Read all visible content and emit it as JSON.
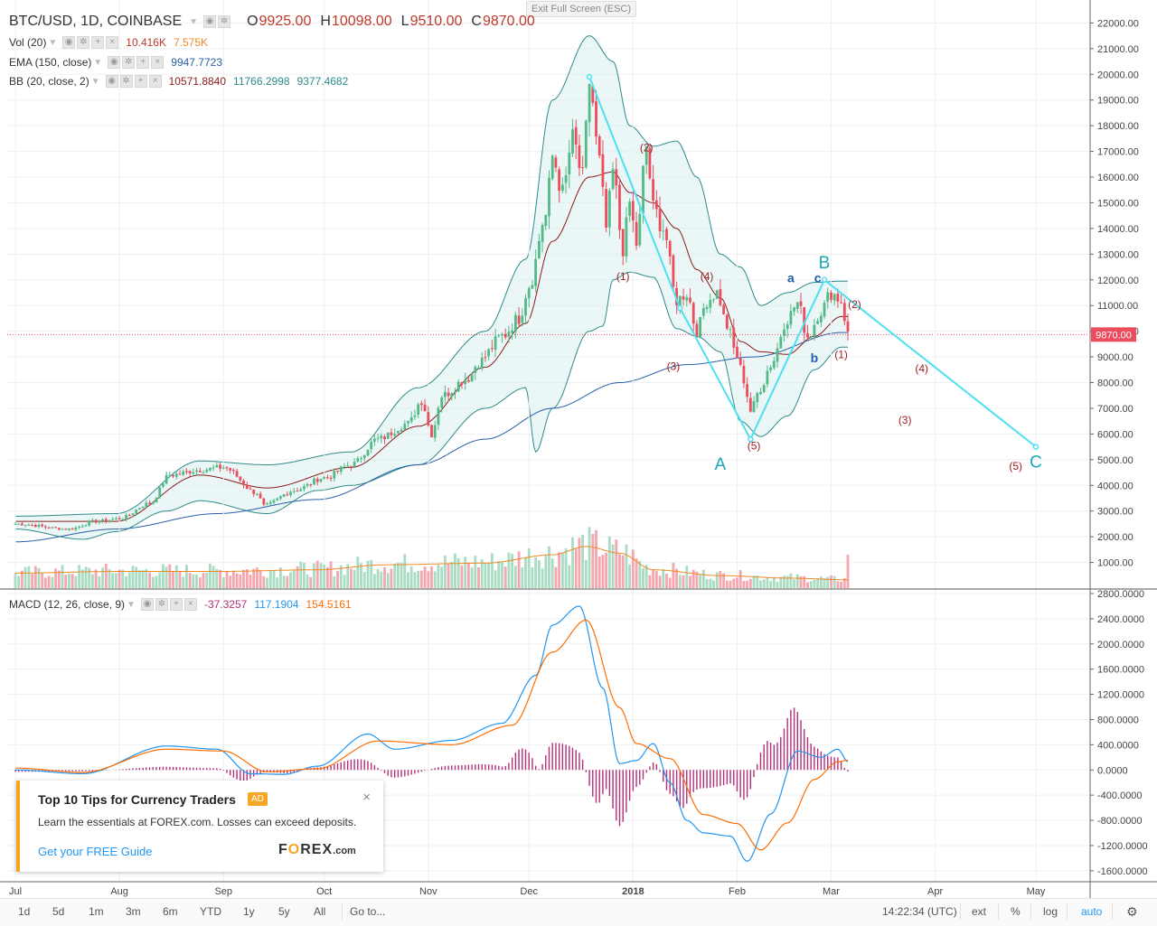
{
  "header": {
    "symbol": "BTC/USD, 1D, COINBASE",
    "open_label": "O",
    "open": "9925.00",
    "high_label": "H",
    "high": "10098.00",
    "low_label": "L",
    "low": "9510.00",
    "close_label": "C",
    "close": "9870.00"
  },
  "exit_fullscreen": "Exit Full Screen (ESC)",
  "indicators": {
    "vol": {
      "label": "Vol (20)",
      "v1": "10.416K",
      "v2": "7.575K"
    },
    "ema": {
      "label": "EMA (150, close)",
      "v1": "9947.7723"
    },
    "bb": {
      "label": "BB (20, close, 2)",
      "v1": "10571.8840",
      "v2": "11766.2998",
      "v3": "9377.4682"
    },
    "macd": {
      "label": "MACD (12, 26, close, 9)",
      "v1": "-37.3257",
      "v2": "117.1904",
      "v3": "154.5161"
    }
  },
  "colors": {
    "up": "#53b987",
    "down": "#eb4d5c",
    "vol_up": "#a9dcc3",
    "vol_down": "#f5a6ae",
    "bb_band": "#2e8b8b",
    "bb_basis": "#8b1a1a",
    "ema": "#2a5fa8",
    "wave": "#4ee0f0",
    "macd": "#2196f3",
    "signal": "#ff6d00",
    "hist": "#b0307a",
    "price_tag": "#eb4d5c"
  },
  "chart_data": [
    {
      "type": "candlestick",
      "title": "BTC/USD, 1D, COINBASE",
      "ylim": [
        0,
        22400
      ],
      "y_ticks": [
        "1000.00",
        "2000.00",
        "3000.00",
        "4000.00",
        "5000.00",
        "6000.00",
        "7000.00",
        "8000.00",
        "9000.00",
        "10000.00",
        "11000.00",
        "12000.00",
        "13000.00",
        "14000.00",
        "15000.00",
        "16000.00",
        "17000.00",
        "18000.00",
        "19000.00",
        "20000.00",
        "21000.00",
        "22000.00"
      ],
      "x_ticks": [
        "Jul",
        "Aug",
        "Sep",
        "Oct",
        "Nov",
        "Dec",
        "2018",
        "Feb",
        "Mar",
        "Apr",
        "May"
      ],
      "x_tick_days": [
        0,
        31,
        62,
        92,
        123,
        153,
        184,
        215,
        243,
        274,
        304
      ],
      "last_price_label": "9870.00",
      "anchors": [
        [
          0,
          2500
        ],
        [
          16,
          2300
        ],
        [
          24,
          2600
        ],
        [
          31,
          2700
        ],
        [
          40,
          3300
        ],
        [
          46,
          4400
        ],
        [
          55,
          4600
        ],
        [
          62,
          4700
        ],
        [
          72,
          3700
        ],
        [
          74,
          3200
        ],
        [
          83,
          3800
        ],
        [
          92,
          4300
        ],
        [
          100,
          4800
        ],
        [
          108,
          5800
        ],
        [
          117,
          6400
        ],
        [
          121,
          7300
        ],
        [
          124,
          6000
        ],
        [
          127,
          7500
        ],
        [
          135,
          8200
        ],
        [
          138,
          8800
        ],
        [
          145,
          9800
        ],
        [
          150,
          10500
        ],
        [
          153,
          11800
        ],
        [
          158,
          14500
        ],
        [
          160,
          16800
        ],
        [
          163,
          15400
        ],
        [
          166,
          17500
        ],
        [
          169,
          16000
        ],
        [
          171,
          19700
        ],
        [
          174,
          16600
        ],
        [
          176,
          14000
        ],
        [
          178,
          16200
        ],
        [
          181,
          13200
        ],
        [
          183,
          15000
        ],
        [
          185,
          13400
        ],
        [
          188,
          17200
        ],
        [
          190,
          14800
        ],
        [
          193,
          14000
        ],
        [
          197,
          11200
        ],
        [
          200,
          11500
        ],
        [
          203,
          10000
        ],
        [
          206,
          11200
        ],
        [
          209,
          11500
        ],
        [
          212,
          10200
        ],
        [
          215,
          9000
        ],
        [
          217,
          8100
        ],
        [
          219,
          6900
        ],
        [
          222,
          7800
        ],
        [
          225,
          8700
        ],
        [
          230,
          10500
        ],
        [
          233,
          11100
        ],
        [
          236,
          9800
        ],
        [
          240,
          10800
        ],
        [
          243,
          11500
        ],
        [
          246,
          11200
        ],
        [
          248,
          9870
        ]
      ],
      "bb_upper_anchors": [
        [
          0,
          2800
        ],
        [
          30,
          2900
        ],
        [
          55,
          4950
        ],
        [
          75,
          4800
        ],
        [
          100,
          5300
        ],
        [
          120,
          7800
        ],
        [
          140,
          10000
        ],
        [
          152,
          12800
        ],
        [
          160,
          19000
        ],
        [
          171,
          21500
        ],
        [
          178,
          20500
        ],
        [
          183,
          18000
        ],
        [
          190,
          17200
        ],
        [
          197,
          17400
        ],
        [
          203,
          16000
        ],
        [
          210,
          13000
        ],
        [
          216,
          12500
        ],
        [
          222,
          11000
        ],
        [
          230,
          11500
        ],
        [
          238,
          11900
        ],
        [
          246,
          11950
        ]
      ],
      "bb_basis_anchors": [
        [
          0,
          2600
        ],
        [
          30,
          2600
        ],
        [
          55,
          4400
        ],
        [
          75,
          3900
        ],
        [
          100,
          4700
        ],
        [
          120,
          6300
        ],
        [
          140,
          8600
        ],
        [
          152,
          10300
        ],
        [
          160,
          13500
        ],
        [
          171,
          16000
        ],
        [
          178,
          16200
        ],
        [
          183,
          15400
        ],
        [
          190,
          15000
        ],
        [
          197,
          14000
        ],
        [
          203,
          12400
        ],
        [
          210,
          11300
        ],
        [
          216,
          9600
        ],
        [
          222,
          9200
        ],
        [
          230,
          9100
        ],
        [
          238,
          9800
        ],
        [
          246,
          10572
        ]
      ],
      "bb_lower_anchors": [
        [
          0,
          2300
        ],
        [
          20,
          1900
        ],
        [
          30,
          2200
        ],
        [
          45,
          3000
        ],
        [
          55,
          3400
        ],
        [
          75,
          2900
        ],
        [
          90,
          3800
        ],
        [
          100,
          4000
        ],
        [
          120,
          4800
        ],
        [
          140,
          7000
        ],
        [
          152,
          7800
        ],
        [
          155,
          5300
        ],
        [
          160,
          7000
        ],
        [
          171,
          10000
        ],
        [
          175,
          10200
        ],
        [
          178,
          12000
        ],
        [
          183,
          12300
        ],
        [
          190,
          12100
        ],
        [
          197,
          10100
        ],
        [
          203,
          9800
        ],
        [
          210,
          9200
        ],
        [
          216,
          6500
        ],
        [
          222,
          5900
        ],
        [
          230,
          6700
        ],
        [
          238,
          8500
        ],
        [
          246,
          9377
        ]
      ],
      "ema_anchors": [
        [
          0,
          1800
        ],
        [
          30,
          2300
        ],
        [
          60,
          2900
        ],
        [
          90,
          3450
        ],
        [
          120,
          4800
        ],
        [
          140,
          5800
        ],
        [
          160,
          7000
        ],
        [
          180,
          8000
        ],
        [
          200,
          8700
        ],
        [
          220,
          9000
        ],
        [
          246,
          9948
        ]
      ],
      "volume_ylim": [
        0,
        130
      ],
      "vol_ma_anchors": [
        [
          0,
          18
        ],
        [
          30,
          20
        ],
        [
          60,
          20
        ],
        [
          90,
          22
        ],
        [
          110,
          28
        ],
        [
          140,
          30
        ],
        [
          160,
          40
        ],
        [
          170,
          50
        ],
        [
          180,
          42
        ],
        [
          190,
          22
        ],
        [
          210,
          15
        ],
        [
          230,
          12
        ],
        [
          248,
          10
        ]
      ],
      "wave_points": [
        [
          171,
          19900
        ],
        [
          198,
          10900
        ],
        [
          219,
          5800
        ],
        [
          241,
          12000
        ],
        [
          304,
          5500
        ]
      ],
      "wave_labels": [
        {
          "day": 210,
          "price": 4600,
          "text": "A",
          "big": true
        },
        {
          "day": 241,
          "price": 12450,
          "text": "B",
          "big": true
        },
        {
          "day": 304,
          "price": 4700,
          "text": "C",
          "big": true
        },
        {
          "day": 231,
          "price": 11900,
          "text": "a",
          "blue": true
        },
        {
          "day": 238,
          "price": 8800,
          "text": "b",
          "blue": true
        },
        {
          "day": 239,
          "price": 11900,
          "text": "c",
          "blue": true
        },
        {
          "day": 181,
          "price": 12000,
          "text": "(1)"
        },
        {
          "day": 188,
          "price": 17000,
          "text": "(2)"
        },
        {
          "day": 196,
          "price": 8500,
          "text": "(3)"
        },
        {
          "day": 206,
          "price": 12000,
          "text": "(4)"
        },
        {
          "day": 220,
          "price": 5400,
          "text": "(5)"
        },
        {
          "day": 250,
          "price": 10900,
          "text": "(2)"
        },
        {
          "day": 246,
          "price": 8950,
          "text": "(1)"
        },
        {
          "day": 270,
          "price": 8400,
          "text": "(4)"
        },
        {
          "day": 265,
          "price": 6400,
          "text": "(3)"
        },
        {
          "day": 298,
          "price": 4600,
          "text": "(5)"
        }
      ]
    },
    {
      "type": "line",
      "title": "MACD (12, 26, close, 9)",
      "ylim": [
        -1760,
        2800
      ],
      "y_ticks": [
        "2800.0000",
        "2400.0000",
        "2000.0000",
        "1600.0000",
        "1200.0000",
        "800.0000",
        "400.0000",
        "0.0000",
        "-400.0000",
        "-800.0000",
        "-1200.0000",
        "-1600.0000"
      ],
      "macd_anchors": [
        [
          0,
          0
        ],
        [
          20,
          -60
        ],
        [
          45,
          380
        ],
        [
          60,
          330
        ],
        [
          70,
          -60
        ],
        [
          80,
          -70
        ],
        [
          90,
          60
        ],
        [
          105,
          570
        ],
        [
          113,
          330
        ],
        [
          130,
          470
        ],
        [
          145,
          740
        ],
        [
          155,
          1500
        ],
        [
          160,
          2300
        ],
        [
          168,
          2600
        ],
        [
          175,
          1300
        ],
        [
          180,
          100
        ],
        [
          185,
          150
        ],
        [
          190,
          420
        ],
        [
          195,
          -200
        ],
        [
          200,
          -800
        ],
        [
          205,
          -1000
        ],
        [
          213,
          -1050
        ],
        [
          218,
          -1450
        ],
        [
          225,
          -700
        ],
        [
          233,
          300
        ],
        [
          240,
          200
        ],
        [
          245,
          330
        ],
        [
          248,
          130
        ]
      ],
      "signal_anchors": [
        [
          0,
          30
        ],
        [
          20,
          -40
        ],
        [
          45,
          330
        ],
        [
          62,
          300
        ],
        [
          75,
          -30
        ],
        [
          90,
          20
        ],
        [
          108,
          460
        ],
        [
          130,
          400
        ],
        [
          148,
          710
        ],
        [
          160,
          1870
        ],
        [
          170,
          2380
        ],
        [
          180,
          990
        ],
        [
          185,
          420
        ],
        [
          195,
          180
        ],
        [
          205,
          -710
        ],
        [
          215,
          -850
        ],
        [
          222,
          -1270
        ],
        [
          230,
          -840
        ],
        [
          238,
          -150
        ],
        [
          245,
          130
        ],
        [
          248,
          155
        ]
      ]
    }
  ],
  "bottombar": {
    "ranges": [
      "1d",
      "5d",
      "1m",
      "3m",
      "6m",
      "YTD",
      "1y",
      "5y",
      "All"
    ],
    "goto": "Go to...",
    "time": "14:22:34 (UTC)",
    "ext": "ext",
    "percent": "%",
    "log": "log",
    "auto": "auto"
  },
  "ad": {
    "title": "Top 10 Tips for Currency Traders",
    "badge": "AD",
    "text": "Learn the essentials at FOREX.com. Losses can exceed deposits.",
    "cta": "Get your FREE Guide",
    "logo_pre": "F",
    "logo_o": "O",
    "logo_post": "REX",
    "logo_dotcom": ".com",
    "close": "×"
  }
}
